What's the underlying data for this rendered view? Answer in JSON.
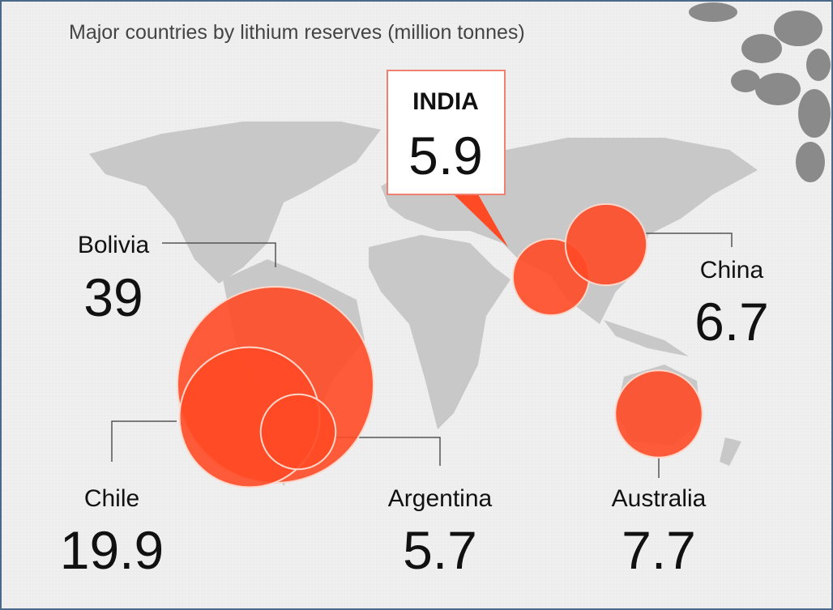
{
  "chart_data": {
    "type": "bubble",
    "title": "Major countries by lithium reserves (million tonnes)",
    "categories": [
      "Bolivia",
      "Chile",
      "Argentina",
      "INDIA",
      "China",
      "Australia"
    ],
    "values": [
      39,
      19.9,
      5.7,
      5.9,
      6.7,
      7.7
    ],
    "color": "#ff4a26"
  }
}
